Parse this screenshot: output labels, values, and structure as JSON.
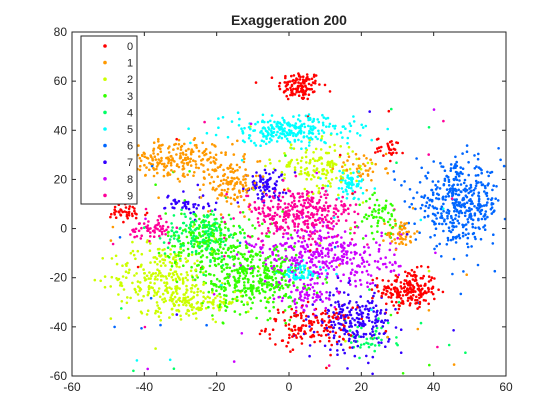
{
  "chart_data": {
    "type": "scatter",
    "title": "Exaggeration 200",
    "xlabel": "",
    "ylabel": "",
    "xlim": [
      -60,
      60
    ],
    "ylim": [
      -60,
      80
    ],
    "xticks": [
      "-60",
      "-40",
      "-20",
      "0",
      "20",
      "40",
      "60"
    ],
    "yticks": [
      "-60",
      "-40",
      "-20",
      "0",
      "20",
      "40",
      "60",
      "80"
    ],
    "grid": false,
    "legend_position": "top-left",
    "series": [
      {
        "name": "0",
        "color": "#ff0000",
        "clusters": [
          {
            "cx": 3,
            "cy": 58,
            "sx": 3,
            "sy": 3,
            "n": 120
          },
          {
            "cx": 33,
            "cy": -25,
            "sx": 4,
            "sy": 4,
            "n": 200
          },
          {
            "cx": 6,
            "cy": -40,
            "sx": 6,
            "sy": 4,
            "n": 150
          },
          {
            "cx": -45,
            "cy": 6,
            "sx": 3,
            "sy": 2,
            "n": 40
          },
          {
            "cx": 28,
            "cy": 33,
            "sx": 2,
            "sy": 2,
            "n": 30
          }
        ]
      },
      {
        "name": "1",
        "color": "#ff9900",
        "clusters": [
          {
            "cx": -32,
            "cy": 28,
            "sx": 8,
            "sy": 4,
            "n": 220
          },
          {
            "cx": -16,
            "cy": 18,
            "sx": 4,
            "sy": 5,
            "n": 120
          },
          {
            "cx": 31,
            "cy": -2,
            "sx": 2,
            "sy": 3,
            "n": 50
          },
          {
            "cx": 20,
            "cy": 25,
            "sx": 3,
            "sy": 3,
            "n": 40
          }
        ]
      },
      {
        "name": "2",
        "color": "#ccff00",
        "clusters": [
          {
            "cx": -35,
            "cy": -20,
            "sx": 7,
            "sy": 7,
            "n": 260
          },
          {
            "cx": -25,
            "cy": -30,
            "sx": 6,
            "sy": 3,
            "n": 120
          },
          {
            "cx": 8,
            "cy": 25,
            "sx": 6,
            "sy": 5,
            "n": 150
          }
        ]
      },
      {
        "name": "3",
        "color": "#33ff00",
        "clusters": [
          {
            "cx": -10,
            "cy": -20,
            "sx": 7,
            "sy": 7,
            "n": 380
          },
          {
            "cx": -22,
            "cy": -5,
            "sx": 6,
            "sy": 6,
            "n": 200
          },
          {
            "cx": 25,
            "cy": 5,
            "sx": 3,
            "sy": 4,
            "n": 60
          }
        ]
      },
      {
        "name": "4",
        "color": "#00ff66",
        "clusters": [
          {
            "cx": -24,
            "cy": -2,
            "sx": 5,
            "sy": 5,
            "n": 150
          },
          {
            "cx": 22,
            "cy": -45,
            "sx": 4,
            "sy": 3,
            "n": 40
          }
        ]
      },
      {
        "name": "5",
        "color": "#00ffff",
        "clusters": [
          {
            "cx": 0,
            "cy": 40,
            "sx": 9,
            "sy": 3,
            "n": 250
          },
          {
            "cx": 17,
            "cy": 18,
            "sx": 3,
            "sy": 3,
            "n": 60
          },
          {
            "cx": 3,
            "cy": -18,
            "sx": 3,
            "sy": 2,
            "n": 60
          }
        ]
      },
      {
        "name": "6",
        "color": "#0066ff",
        "clusters": [
          {
            "cx": 47,
            "cy": 10,
            "sx": 6,
            "sy": 8,
            "n": 420
          }
        ]
      },
      {
        "name": "7",
        "color": "#3300ff",
        "clusters": [
          {
            "cx": 18,
            "cy": -38,
            "sx": 5,
            "sy": 6,
            "n": 220
          },
          {
            "cx": -7,
            "cy": 18,
            "sx": 3,
            "sy": 3,
            "n": 80
          },
          {
            "cx": -28,
            "cy": 10,
            "sx": 3,
            "sy": 2,
            "n": 40
          }
        ]
      },
      {
        "name": "8",
        "color": "#cc00ff",
        "clusters": [
          {
            "cx": 10,
            "cy": -12,
            "sx": 10,
            "sy": 6,
            "n": 360
          },
          {
            "cx": 5,
            "cy": -28,
            "sx": 3,
            "sy": 3,
            "n": 60
          }
        ]
      },
      {
        "name": "9",
        "color": "#ff0099",
        "clusters": [
          {
            "cx": 3,
            "cy": 6,
            "sx": 8,
            "sy": 5,
            "n": 340
          },
          {
            "cx": -38,
            "cy": 0,
            "sx": 3,
            "sy": 2,
            "n": 60
          }
        ]
      }
    ]
  }
}
